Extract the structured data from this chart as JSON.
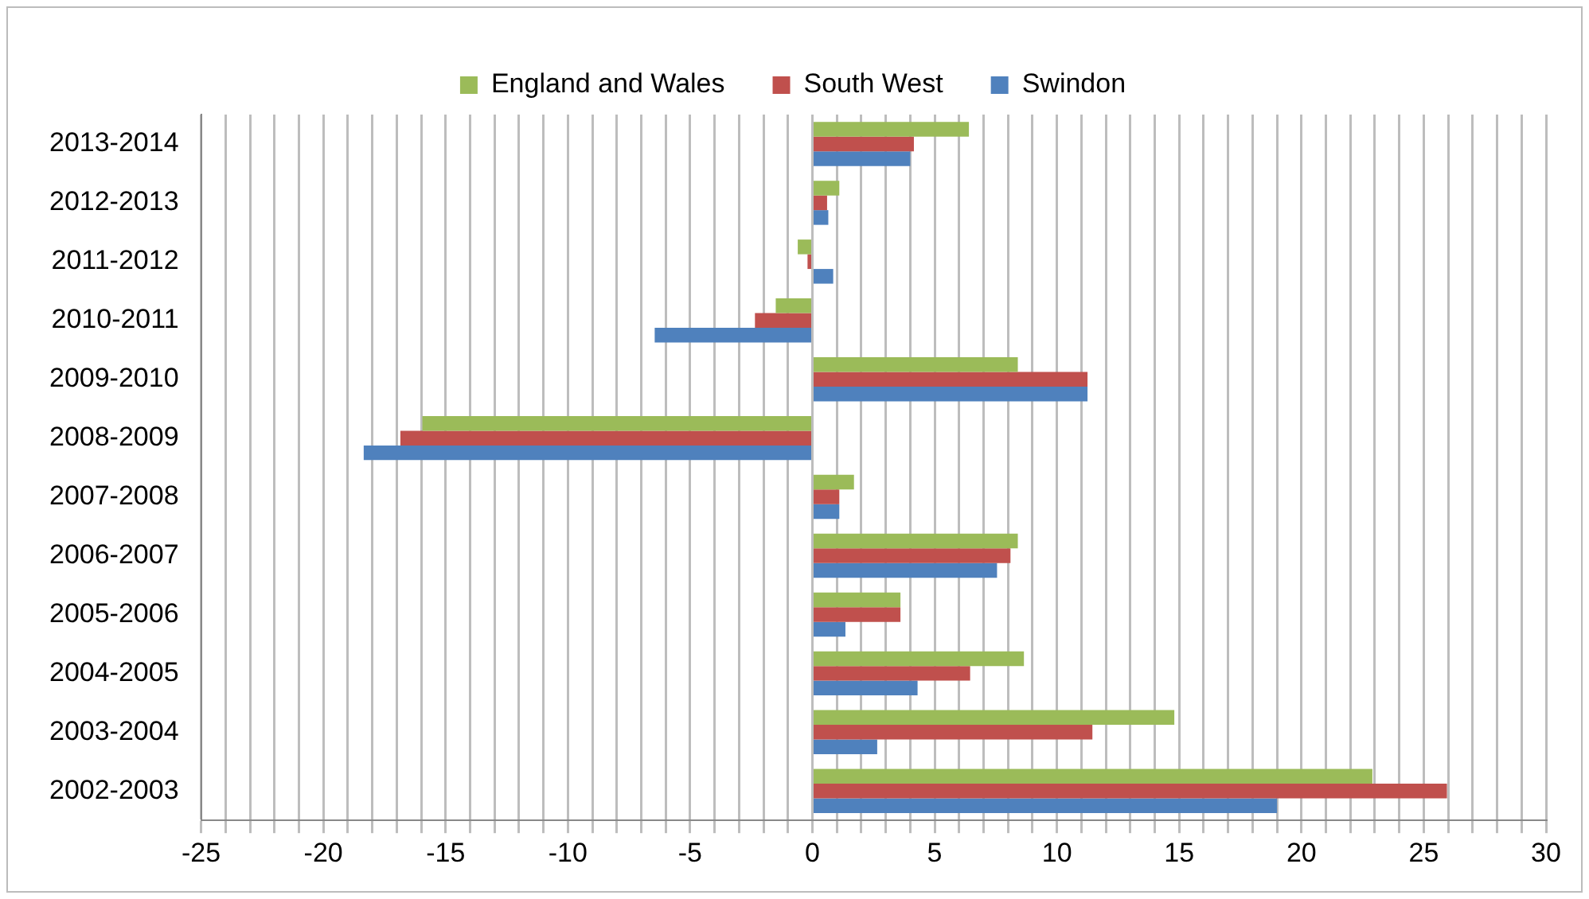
{
  "chart_data": {
    "type": "bar",
    "orientation": "horizontal",
    "legend": "top",
    "grid": "x",
    "categories": [
      "2013-2014",
      "2012-2013",
      "2011-2012",
      "2010-2011",
      "2009-2010",
      "2008-2009",
      "2007-2008",
      "2006-2007",
      "2005-2006",
      "2004-2005",
      "2003-2004",
      "2002-2003"
    ],
    "series": [
      {
        "name": "England and Wales",
        "color": "#9bbb59",
        "values": [
          6.4,
          1.1,
          -0.6,
          -1.5,
          8.4,
          -15.95,
          1.7,
          8.4,
          3.6,
          8.65,
          14.8,
          22.9
        ]
      },
      {
        "name": "South West",
        "color": "#c0504d",
        "values": [
          4.15,
          0.6,
          -0.2,
          -2.35,
          11.25,
          -16.85,
          1.1,
          8.1,
          3.6,
          6.45,
          11.45,
          25.95
        ]
      },
      {
        "name": "Swindon",
        "color": "#4f81bd",
        "values": [
          4.0,
          0.65,
          0.85,
          -6.45,
          11.25,
          -18.35,
          1.1,
          7.55,
          1.35,
          4.3,
          2.65,
          19.0
        ]
      }
    ],
    "xlim": [
      -25,
      30
    ],
    "xticks": [
      -25,
      {
        "value": -24,
        "label": null
      },
      {
        "value": -23,
        "label": null
      },
      {
        "value": -22,
        "label": null
      },
      {
        "value": -21,
        "label": null
      },
      -20,
      {
        "value": -19,
        "label": null
      },
      {
        "value": -18,
        "label": null
      },
      {
        "value": -17,
        "label": null
      },
      {
        "value": -16,
        "label": null
      },
      -15,
      {
        "value": -14,
        "label": null
      },
      {
        "value": -13,
        "label": null
      },
      {
        "value": -12,
        "label": null
      },
      {
        "value": -11,
        "label": null
      },
      -10,
      {
        "value": -9,
        "label": null
      },
      {
        "value": -8,
        "label": null
      },
      {
        "value": -7,
        "label": null
      },
      {
        "value": -6,
        "label": null
      },
      -5,
      {
        "value": -4,
        "label": null
      },
      {
        "value": -3,
        "label": null
      },
      {
        "value": -2,
        "label": null
      },
      {
        "value": -1,
        "label": null
      },
      0,
      {
        "value": 1,
        "label": null
      },
      {
        "value": 2,
        "label": null
      },
      {
        "value": 3,
        "label": null
      },
      {
        "value": 4,
        "label": null
      },
      5,
      {
        "value": 6,
        "label": null
      },
      {
        "value": 7,
        "label": null
      },
      {
        "value": 8,
        "label": null
      },
      {
        "value": 9,
        "label": null
      },
      10,
      {
        "value": 11,
        "label": null
      },
      {
        "value": 12,
        "label": null
      },
      {
        "value": 13,
        "label": null
      },
      {
        "value": 14,
        "label": null
      },
      15,
      {
        "value": 16,
        "label": null
      },
      {
        "value": 17,
        "label": null
      },
      {
        "value": 18,
        "label": null
      },
      {
        "value": 19,
        "label": null
      },
      20,
      {
        "value": 21,
        "label": null
      },
      {
        "value": 22,
        "label": null
      },
      {
        "value": 23,
        "label": null
      },
      {
        "value": 24,
        "label": null
      },
      25,
      {
        "value": 26,
        "label": null
      },
      {
        "value": 27,
        "label": null
      },
      {
        "value": 28,
        "label": null
      },
      {
        "value": 29,
        "label": null
      },
      30
    ]
  }
}
